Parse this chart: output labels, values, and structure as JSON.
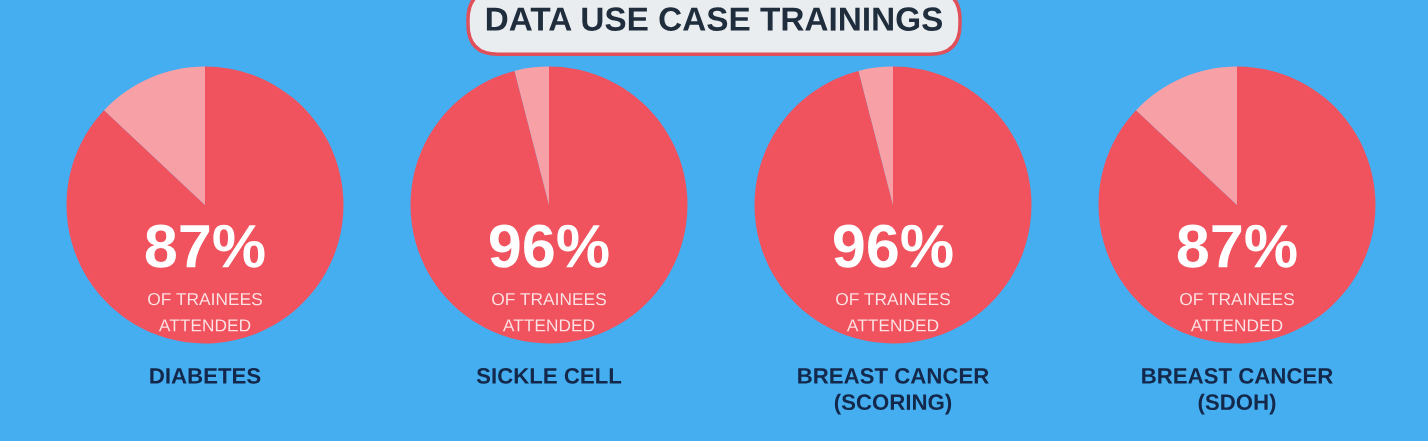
{
  "chart_data": [
    {
      "type": "other",
      "title": "DATA USE CASE TRAININGS"
    },
    {
      "type": "pie",
      "title": "DIABETES",
      "categories": [
        null,
        null
      ],
      "values": [
        87,
        13
      ],
      "colors": [
        "#f0525e",
        "#f7a0a6"
      ],
      "value_labels": [
        "87%",
        null
      ],
      "annotations": [
        "OF TRAINEES\nATTENDED"
      ]
    },
    {
      "type": "pie",
      "title": "SICKLE CELL",
      "categories": [
        null,
        null
      ],
      "values": [
        96,
        4
      ],
      "colors": [
        "#f0525e",
        "#f7a0a6"
      ],
      "value_labels": [
        "96%",
        null
      ],
      "annotations": [
        "OF TRAINEES\nATTENDED"
      ]
    },
    {
      "type": "pie",
      "title": "BREAST CANCER\n(SCORING)",
      "categories": [
        null,
        null
      ],
      "values": [
        96,
        4
      ],
      "colors": [
        "#f0525e",
        "#f7a0a6"
      ],
      "value_labels": [
        "96%",
        null
      ],
      "annotations": [
        "OF TRAINEES\nATTENDED"
      ]
    },
    {
      "type": "pie",
      "title": "BREAST CANCER\n(SDOH)",
      "categories": [
        null,
        null
      ],
      "values": [
        87,
        13
      ],
      "colors": [
        "#f0525e",
        "#f7a0a6"
      ],
      "value_labels": [
        "87%",
        null
      ],
      "annotations": [
        "OF TRAINEES\nATTENDED"
      ]
    }
  ]
}
